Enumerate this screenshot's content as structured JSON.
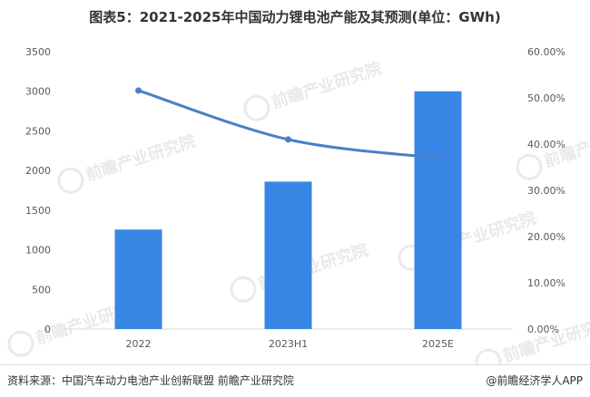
{
  "chart": {
    "title": "图表5：2021-2025年中国动力锂电池产能及其预测(单位：GWh)"
  },
  "chart_data": {
    "type": "bar",
    "title": "图表5：2021-2025年中国动力锂电池产能及其预测(单位：GWh)",
    "categories": [
      "2022",
      "2023H1",
      "2025E"
    ],
    "series": [
      {
        "type": "bar",
        "axis": "left",
        "color": "#3a86e6",
        "values": [
          1255,
          1860,
          3000
        ]
      },
      {
        "type": "line",
        "axis": "right",
        "color": "#4a7fc9",
        "values": [
          0.516,
          0.41,
          0.37
        ]
      }
    ],
    "y_left": {
      "min": 0,
      "max": 3500,
      "ticks": [
        "0",
        "500",
        "1000",
        "1500",
        "2000",
        "2500",
        "3000",
        "3500"
      ]
    },
    "y_right": {
      "min": 0,
      "max": 0.6,
      "ticks": [
        "0.00%",
        "10.00%",
        "20.00%",
        "30.00%",
        "40.00%",
        "50.00%",
        "60.00%"
      ]
    },
    "grid": false,
    "legend": "none"
  },
  "watermark": {
    "text": "前瞻产业研究院"
  },
  "footer": {
    "source": "资料来源：中国汽车动力电池产业创新联盟 前瞻产业研究院",
    "brand": "@前瞻经济学人APP"
  }
}
